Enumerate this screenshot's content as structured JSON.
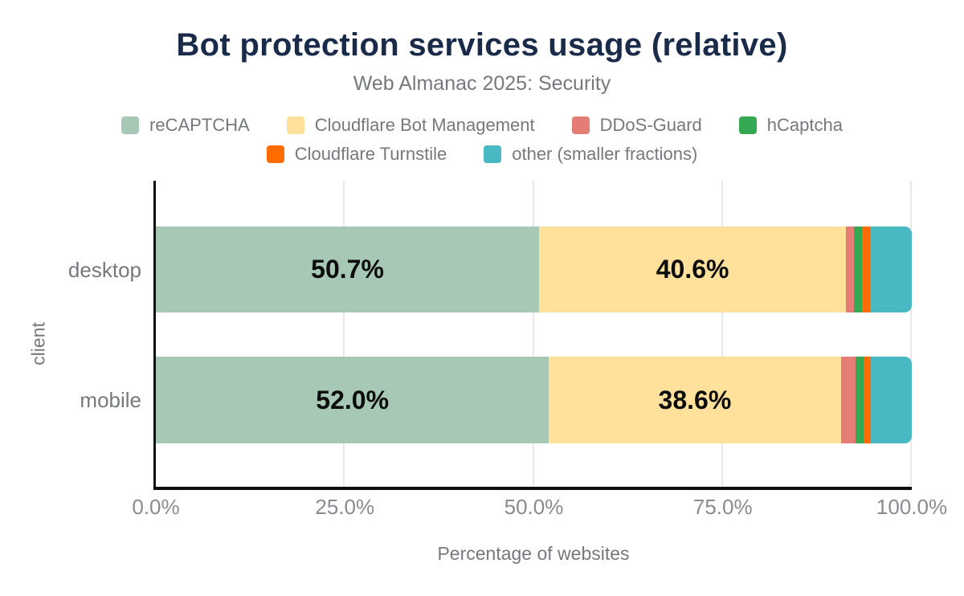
{
  "chart_data": {
    "type": "bar",
    "orientation": "horizontal",
    "stacked": true,
    "title": "Bot protection services usage (relative)",
    "subtitle": "Web Almanac 2025: Security",
    "xlabel": "Percentage of websites",
    "ylabel": "client",
    "categories": [
      "desktop",
      "mobile"
    ],
    "series": [
      {
        "name": "reCAPTCHA",
        "color": "#a6c8b4",
        "values": [
          50.7,
          52.0
        ],
        "labels": [
          "50.7%",
          "52.0%"
        ]
      },
      {
        "name": "Cloudflare Bot Management",
        "color": "#ffe19c",
        "values": [
          40.6,
          38.6
        ],
        "labels": [
          "40.6%",
          "38.6%"
        ]
      },
      {
        "name": "DDoS-Guard",
        "color": "#e47d75",
        "values": [
          1.0,
          2.0
        ],
        "labels": null
      },
      {
        "name": "hCaptcha",
        "color": "#34a853",
        "values": [
          1.1,
          1.0
        ],
        "labels": null
      },
      {
        "name": "Cloudflare Turnstile",
        "color": "#fe6b00",
        "values": [
          1.1,
          1.0
        ],
        "labels": null
      },
      {
        "name": "other (smaller fractions)",
        "color": "#48b8c2",
        "values": [
          5.5,
          5.4
        ],
        "labels": null
      }
    ],
    "x_ticks": [
      {
        "label": "0.0%",
        "value": 0
      },
      {
        "label": "25.0%",
        "value": 25
      },
      {
        "label": "50.0%",
        "value": 50
      },
      {
        "label": "75.0%",
        "value": 75
      },
      {
        "label": "100.0%",
        "value": 100
      }
    ],
    "xlim": [
      0,
      100
    ],
    "grid": "vertical",
    "legend_position": "top",
    "legend_rows": [
      4,
      2
    ],
    "title_color": "#1a2b4a"
  }
}
